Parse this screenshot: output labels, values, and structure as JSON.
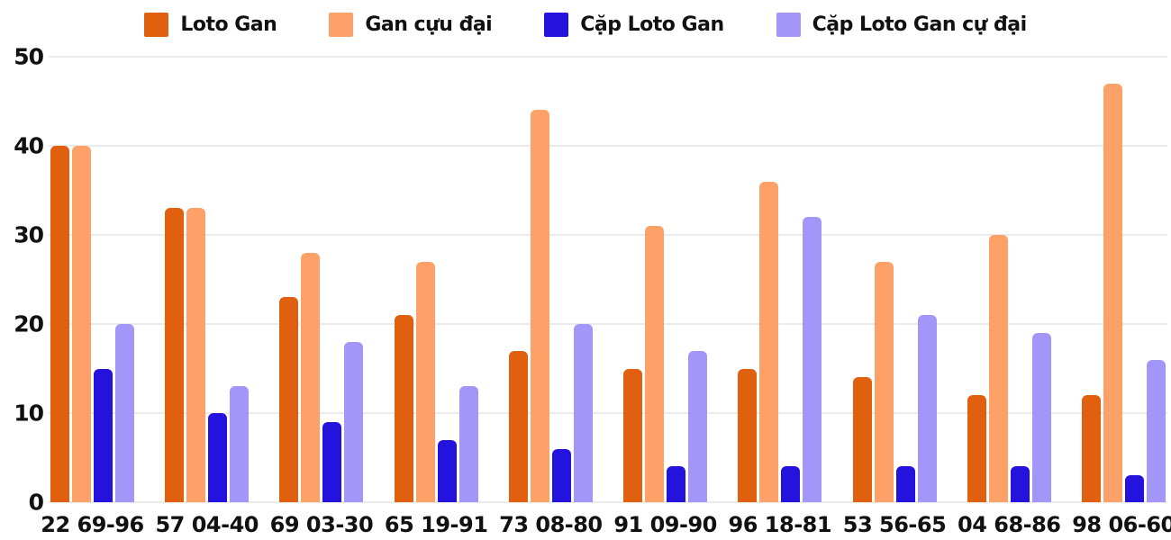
{
  "legend": {
    "items": [
      {
        "label": "Loto Gan",
        "color": "#e06010"
      },
      {
        "label": "Gan cựu đại",
        "color": "#fda169"
      },
      {
        "label": "Cặp Loto Gan",
        "color": "#2412dd"
      },
      {
        "label": "Cặp Loto Gan cự đại",
        "color": "#a296f8"
      }
    ]
  },
  "chart_data": {
    "type": "bar",
    "title": "",
    "xlabel": "",
    "ylabel": "",
    "categories": [
      "22 69-96",
      "57 04-40",
      "69 03-30",
      "65 19-91",
      "73 08-80",
      "91 09-90",
      "96 18-81",
      "53 56-65",
      "04 68-86",
      "98 06-60"
    ],
    "series": [
      {
        "name": "Loto Gan",
        "color": "#e06010",
        "values": [
          40,
          33,
          23,
          21,
          17,
          15,
          15,
          14,
          12,
          12
        ]
      },
      {
        "name": "Gan cựu đại",
        "color": "#fda169",
        "values": [
          40,
          33,
          28,
          27,
          44,
          31,
          36,
          27,
          30,
          47
        ]
      },
      {
        "name": "Cặp Loto Gan",
        "color": "#2412dd",
        "values": [
          15,
          10,
          9,
          7,
          6,
          4,
          4,
          4,
          4,
          3
        ]
      },
      {
        "name": "Cặp Loto Gan cự đại",
        "color": "#a296f8",
        "values": [
          20,
          13,
          18,
          13,
          20,
          17,
          32,
          21,
          19,
          16
        ]
      }
    ],
    "ylim": [
      0,
      50
    ],
    "yticks": [
      0,
      10,
      20,
      30,
      40,
      50
    ],
    "grid": true,
    "legend_position": "top"
  }
}
